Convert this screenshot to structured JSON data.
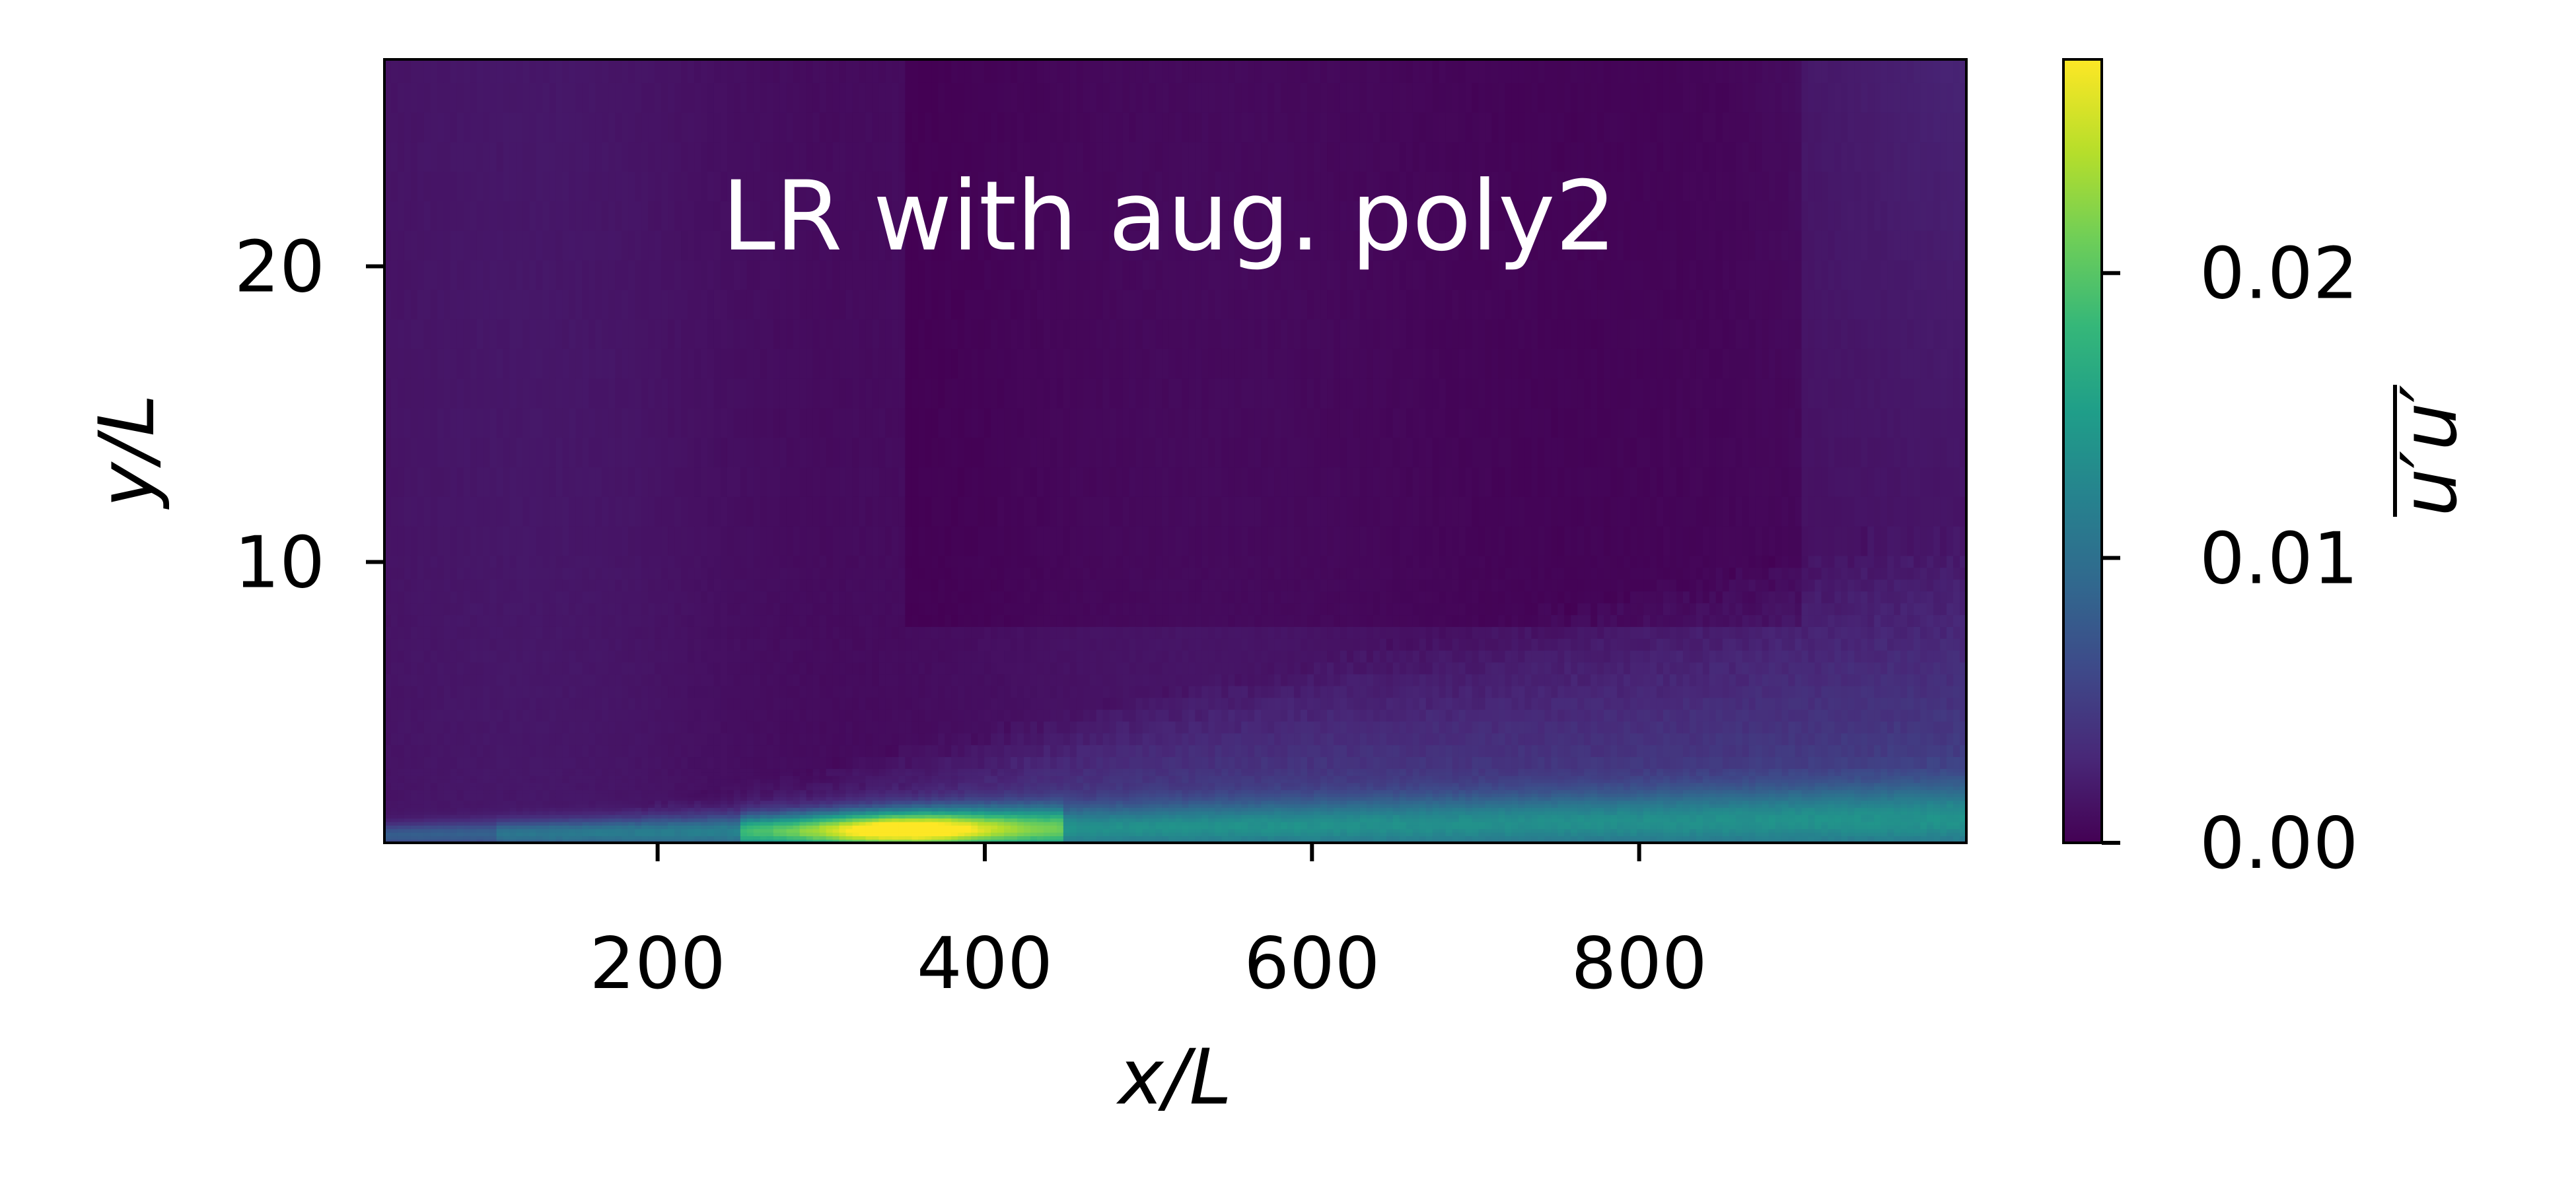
{
  "chart_data": {
    "type": "heatmap",
    "title": "LR with aug. poly2",
    "xlabel": "x/L",
    "ylabel": "y/L",
    "xlim": [
      33,
      1000
    ],
    "ylim": [
      0.5,
      27
    ],
    "x_ticks": [
      200,
      400,
      600,
      800
    ],
    "x_tick_labels": [
      "200",
      "400",
      "600",
      "800"
    ],
    "y_ticks": [
      10,
      20
    ],
    "y_tick_labels": [
      "10",
      "20"
    ],
    "colorbar": {
      "label": "u′u′",
      "label_overline": true,
      "colormap": "viridis",
      "range": [
        0,
        0.0275
      ],
      "ticks": [
        0,
        0.01,
        0.02
      ],
      "tick_labels": [
        "0.00",
        "0.01",
        "0.02"
      ]
    },
    "colormap_stops": [
      "#440154",
      "#482878",
      "#3e4989",
      "#31688e",
      "#26828e",
      "#1f9e89",
      "#35b779",
      "#6ece58",
      "#b5de2b",
      "#fde725"
    ],
    "field_description_points": [
      {
        "x": 350,
        "y": 0.9,
        "value": 0.027
      },
      {
        "x": 200,
        "y": 1.5,
        "value": 0.01
      },
      {
        "x": 600,
        "y": 3,
        "value": 0.007
      },
      {
        "x": 800,
        "y": 5,
        "value": 0.005
      },
      {
        "x": 400,
        "y": 15,
        "value": 0.0
      },
      {
        "x": 100,
        "y": 20,
        "value": 0.002
      }
    ]
  }
}
